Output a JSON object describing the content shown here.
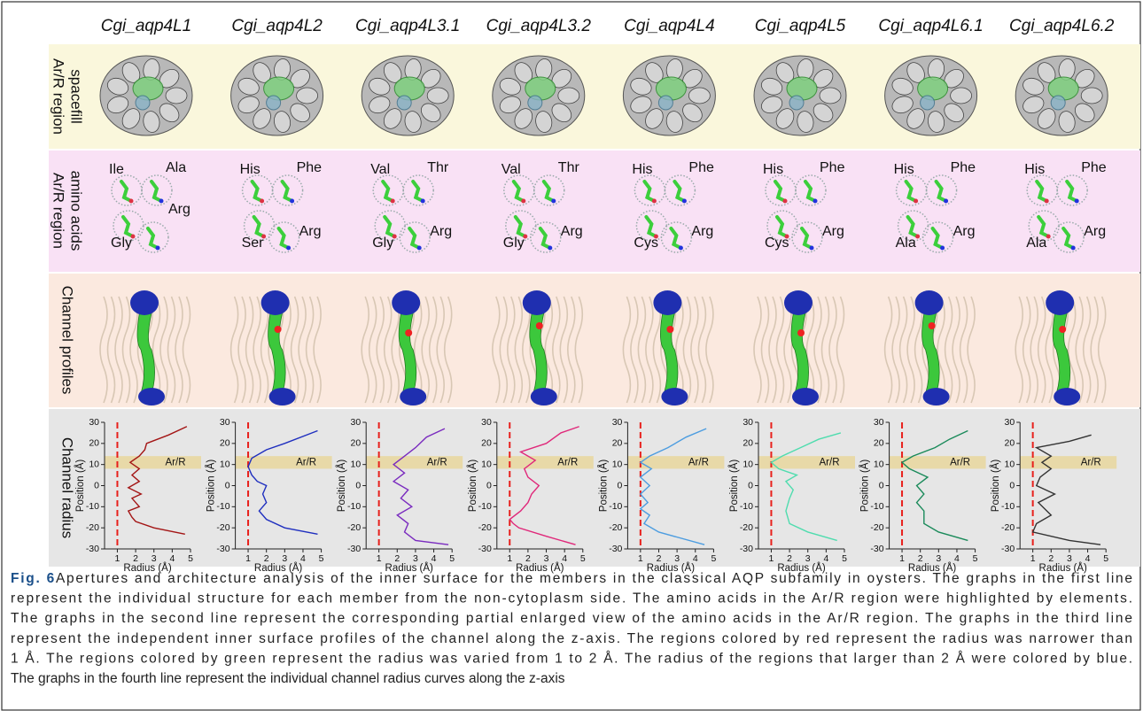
{
  "columns": [
    "Cgi_aqp4L1",
    "Cgi_aqp4L2",
    "Cgi_aqp4L3.1",
    "Cgi_aqp4L3.2",
    "Cgi_aqp4L4",
    "Cgi_aqp4L5",
    "Cgi_aqp4L6.1",
    "Cgi_aqp4L6.2"
  ],
  "row_labels": [
    [
      "Ar/R region",
      "spacefill"
    ],
    [
      "Ar/R region",
      "amino acids"
    ],
    [
      "Channel profiles"
    ],
    [
      "Channel radius"
    ]
  ],
  "amino_acids": [
    [
      "Ile",
      "Ala",
      "Gly",
      "Arg"
    ],
    [
      "His",
      "Phe",
      "Ser",
      "Arg"
    ],
    [
      "Val",
      "Thr",
      "Gly",
      "Arg"
    ],
    [
      "Val",
      "Thr",
      "Gly",
      "Arg"
    ],
    [
      "His",
      "Phe",
      "Cys",
      "Arg"
    ],
    [
      "His",
      "Phe",
      "Cys",
      "Arg"
    ],
    [
      "His",
      "Phe",
      "Ala",
      "Arg"
    ],
    [
      "His",
      "Phe",
      "Ala",
      "Arg"
    ]
  ],
  "chart_data": {
    "type": "line",
    "xlabel": "Radius (Å)",
    "ylabel": "Position (Å)",
    "band_label": "Ar/R",
    "band": [
      8,
      14
    ],
    "band_color": "#e8d9a8",
    "threshold": 1,
    "threshold_color": "#e8201c",
    "xlim": [
      0.3,
      5
    ],
    "xticks": [
      1,
      2,
      3,
      4,
      5
    ],
    "ylim": [
      -30,
      30
    ],
    "yticks": [
      -30,
      -20,
      -10,
      0,
      10,
      20,
      30
    ],
    "series": [
      {
        "color": "#a31515",
        "x": [
          4.7,
          3,
          2,
          1.8,
          1.6,
          2.2,
          1.8,
          2.3,
          1.6,
          2.2,
          1.8,
          2.2,
          1.7,
          2.2,
          2.5,
          2.6,
          3.8,
          4.8
        ],
        "y": [
          -23,
          -20,
          -17,
          -15,
          -12,
          -10,
          -6,
          -4,
          -1,
          2,
          5,
          8,
          11,
          14,
          17,
          20,
          24,
          28
        ]
      },
      {
        "color": "#1f2fbf",
        "x": [
          4.8,
          3,
          2,
          1.6,
          2,
          1.8,
          2,
          1.5,
          1.2,
          1,
          1.2,
          2,
          3,
          4.8
        ],
        "y": [
          -23,
          -20,
          -16,
          -12,
          -8,
          -4,
          0,
          2,
          5,
          9,
          13,
          17,
          20,
          26
        ]
      },
      {
        "color": "#7a2bbf",
        "x": [
          4.8,
          3,
          2.4,
          2.6,
          2,
          2.8,
          2.2,
          2.6,
          1.8,
          2.4,
          1.8,
          2.4,
          3,
          3.6,
          4.6
        ],
        "y": [
          -28,
          -26,
          -22,
          -18,
          -14,
          -10,
          -6,
          -2,
          2,
          6,
          10,
          14,
          18,
          23,
          27
        ]
      },
      {
        "color": "#e0287a",
        "x": [
          4.6,
          3,
          1.5,
          1.2,
          1,
          1.6,
          2,
          2.2,
          2.6,
          2,
          1.8,
          2.4,
          1.6,
          3,
          3.8,
          4.8
        ],
        "y": [
          -28,
          -24,
          -20,
          -18,
          -16,
          -12,
          -8,
          -4,
          0,
          4,
          8,
          12,
          16,
          20,
          25,
          28
        ]
      },
      {
        "color": "#4d9de0",
        "x": [
          4.5,
          2,
          1.2,
          1.5,
          1,
          1.4,
          1,
          1.5,
          1,
          1.6,
          1,
          1.5,
          2.5,
          3.5,
          4.6
        ],
        "y": [
          -28,
          -22,
          -18,
          -14,
          -11,
          -8,
          -4,
          0,
          4,
          8,
          11,
          14,
          18,
          23,
          27
        ]
      },
      {
        "color": "#4fdcae",
        "x": [
          4.6,
          3,
          2,
          1.8,
          2,
          2.2,
          1.8,
          2.4,
          1.4,
          1,
          1.6,
          2.6,
          3.6,
          4.8
        ],
        "y": [
          -26,
          -22,
          -18,
          -12,
          -6,
          -2,
          2,
          5,
          8,
          11,
          14,
          18,
          22,
          25
        ]
      },
      {
        "color": "#1a8a5a",
        "x": [
          4.6,
          3,
          2.2,
          2.2,
          1.8,
          2.2,
          1.8,
          2.4,
          1.4,
          1,
          1.6,
          2.8,
          3.6,
          4.6
        ],
        "y": [
          -26,
          -22,
          -18,
          -12,
          -8,
          -4,
          0,
          4,
          8,
          11,
          14,
          18,
          22,
          26
        ]
      },
      {
        "color": "#333333",
        "x": [
          4.7,
          3,
          1,
          1.2,
          2,
          1.3,
          2.2,
          1.2,
          1.4,
          2,
          1.5,
          2,
          1.2,
          3,
          4.2
        ],
        "y": [
          -28,
          -26,
          -22,
          -18,
          -14,
          -8,
          -4,
          0,
          4,
          8,
          11,
          14,
          18,
          21,
          24
        ]
      }
    ]
  },
  "caption": {
    "label": "Fig. 6",
    "lines": [
      "Apertures and architecture analysis of the inner surface for the members in the classical AQP subfamily in oysters. The graphs in the first line",
      "represent the individual structure for each member from the non-cytoplasm side. The amino acids in the Ar/R region were highlighted by elements.",
      "The graphs in the second line represent the corresponding partial enlarged view of the amino acids in the Ar/R region. The graphs in the third line",
      "represent the independent inner surface profiles of the channel along the z-axis. The regions colored by red represent the radius was narrower than",
      "1 Å. The regions colored by green represent the radius was varied from 1 to 2 Å. The radius of the regions that larger than 2 Å were colored by blue.",
      "The graphs in the fourth line represent the individual channel radius curves along the z-axis"
    ]
  }
}
